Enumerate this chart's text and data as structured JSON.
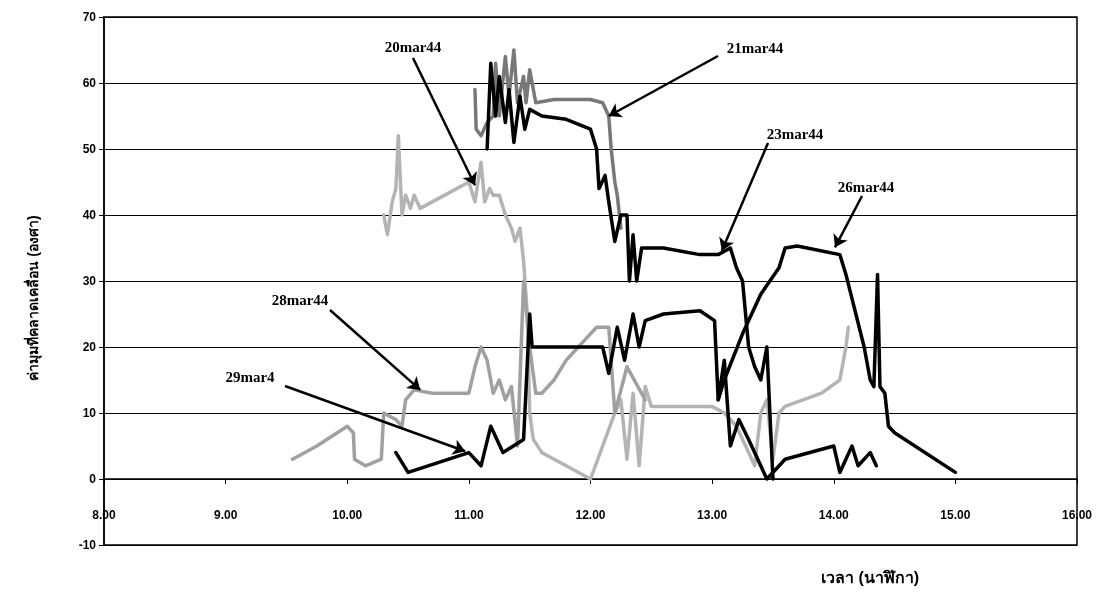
{
  "chart_data": {
    "type": "line",
    "xlabel": "เวลา (นาฬิกา)",
    "ylabel": "ค่ามุมที่คลาดเคลื่อน (องศา)",
    "xlim": [
      8,
      16
    ],
    "xticks": [
      {
        "value": 8,
        "label": "8.00"
      },
      {
        "value": 9,
        "label": "9.00"
      },
      {
        "value": 10,
        "label": "10.00"
      },
      {
        "value": 11,
        "label": "11.00"
      },
      {
        "value": 12,
        "label": "12.00"
      },
      {
        "value": 13,
        "label": "13.00"
      },
      {
        "value": 14,
        "label": "14.00"
      },
      {
        "value": 15,
        "label": "15.00"
      },
      {
        "value": 16,
        "label": "16.00"
      }
    ],
    "ylim": [
      -10,
      70
    ],
    "yticks": [
      -10,
      0,
      10,
      20,
      30,
      40,
      50,
      60,
      70
    ],
    "grid": "y",
    "marker": "none",
    "line_style": "solid",
    "series": [
      {
        "color": "#b4b4b4",
        "x": [
          10.3,
          10.33,
          10.37,
          10.4,
          10.42,
          10.45,
          10.48,
          10.52,
          10.55,
          10.6,
          10.9,
          11.0,
          11.05,
          11.1,
          11.13,
          11.17,
          11.2,
          11.25,
          11.3,
          11.35,
          11.38,
          11.42,
          11.45,
          11.48,
          11.5,
          11.53,
          11.6,
          11.7,
          11.8,
          12.0,
          12.1,
          12.2,
          12.25,
          12.3,
          12.35,
          12.4,
          12.45,
          12.5,
          12.6,
          13.0,
          13.1,
          13.2,
          13.3,
          13.35,
          13.4,
          13.45,
          13.5,
          13.55,
          13.6,
          13.9,
          14.05,
          14.1,
          14.12
        ],
        "values": [
          40,
          37,
          42,
          44,
          52,
          40,
          43,
          41,
          43,
          41,
          44,
          45,
          42,
          48,
          42,
          44,
          43,
          43,
          40,
          38,
          36,
          38,
          33,
          25,
          10,
          6,
          4,
          3,
          2,
          0,
          5,
          10,
          12,
          3,
          13,
          2,
          14,
          11,
          11,
          11,
          10,
          8,
          4,
          2,
          10,
          12,
          3,
          10,
          11,
          13,
          15,
          20,
          23
        ]
      },
      {
        "color": "#a0a0a0",
        "x": [
          9.55,
          9.75,
          10.0,
          10.05,
          10.06,
          10.15,
          10.28,
          10.3,
          10.4,
          10.45,
          10.48,
          10.55,
          10.7,
          11.0,
          11.05,
          11.1,
          11.15,
          11.2,
          11.25,
          11.3,
          11.35,
          11.4,
          11.45,
          11.5,
          11.55,
          11.6,
          11.7,
          11.8,
          11.95,
          12.05,
          12.15,
          12.2,
          12.3,
          12.45
        ],
        "values": [
          3,
          5,
          8,
          7,
          3,
          2,
          3,
          10,
          9,
          8,
          12,
          13.5,
          13,
          13,
          17,
          20,
          18,
          13,
          15,
          12,
          14,
          5,
          30,
          20,
          13,
          13,
          15,
          18,
          21,
          23,
          23,
          10,
          17,
          12
        ]
      },
      {
        "color": "#787878",
        "x": [
          11.05,
          11.06,
          11.1,
          11.15,
          11.2,
          11.22,
          11.25,
          11.3,
          11.33,
          11.37,
          11.4,
          11.45,
          11.47,
          11.5,
          11.55,
          11.7,
          12.0,
          12.1,
          12.15,
          12.17,
          12.2,
          12.22,
          12.25
        ],
        "values": [
          59,
          53,
          52,
          54,
          55,
          63,
          55,
          64,
          58,
          65,
          57,
          61,
          57,
          62,
          57,
          57.5,
          57.5,
          57,
          55,
          50,
          45,
          43,
          38
        ]
      },
      {
        "color": "#000000",
        "x": [
          11.15,
          11.18,
          11.22,
          11.25,
          11.3,
          11.33,
          11.37,
          11.42,
          11.46,
          11.5,
          11.6,
          11.8,
          12.0,
          12.05,
          12.07,
          12.12,
          12.15,
          12.2,
          12.25,
          12.3,
          12.32,
          12.35,
          12.38,
          12.42,
          12.6,
          12.9,
          13.05,
          13.15,
          13.2,
          13.25,
          13.3,
          13.35,
          13.4,
          13.45,
          13.5
        ],
        "values": [
          50,
          63,
          55,
          61,
          54,
          59,
          51,
          58,
          53,
          56,
          55,
          54.5,
          53,
          50,
          44,
          46,
          42,
          36,
          40,
          40,
          30,
          37,
          30,
          35,
          35,
          34,
          34,
          35,
          32,
          30,
          20,
          17,
          15,
          20,
          0
        ]
      },
      {
        "color": "#000000",
        "x": [
          13.05,
          13.1,
          13.25,
          13.4,
          13.55,
          13.6,
          13.7,
          14.05,
          14.1,
          14.25,
          14.3,
          14.33,
          14.36,
          14.38,
          14.42,
          14.45,
          14.5,
          15.0
        ],
        "values": [
          12,
          15,
          22,
          28,
          32,
          35,
          35.3,
          34,
          31,
          20,
          15,
          14,
          31,
          14,
          13,
          8,
          7,
          1
        ]
      },
      {
        "color": "#000000",
        "x": [
          10.4,
          10.5,
          11.0,
          11.1,
          11.18,
          11.28,
          11.45,
          11.5,
          11.52,
          12.1,
          12.15,
          12.22,
          12.28,
          12.35,
          12.4,
          12.45,
          12.6,
          12.9,
          13.02,
          13.05,
          13.1,
          13.15,
          13.22,
          13.3,
          13.45,
          13.6,
          14.0,
          14.05,
          14.15,
          14.2,
          14.3,
          14.35
        ],
        "values": [
          4,
          1,
          4,
          2,
          8,
          4,
          6,
          25,
          20,
          20,
          16,
          23,
          18,
          25,
          20,
          24,
          25,
          25.5,
          24,
          12,
          18,
          5,
          9,
          6,
          0,
          3,
          5,
          1,
          5,
          2,
          4,
          2
        ]
      }
    ],
    "annotations": [
      {
        "text": "20mar44",
        "x": 11.05,
        "y": 44.5
      },
      {
        "text": "21mar44",
        "x": 12.15,
        "y": 55
      },
      {
        "text": "23mar44",
        "x": 13.08,
        "y": 34.6
      },
      {
        "text": "26mar44",
        "x": 14.01,
        "y": 35.1
      },
      {
        "text": "28mar44",
        "x": 10.6,
        "y": 13.5
      },
      {
        "text": "29mar4",
        "x": 10.97,
        "y": 4.2
      }
    ]
  }
}
